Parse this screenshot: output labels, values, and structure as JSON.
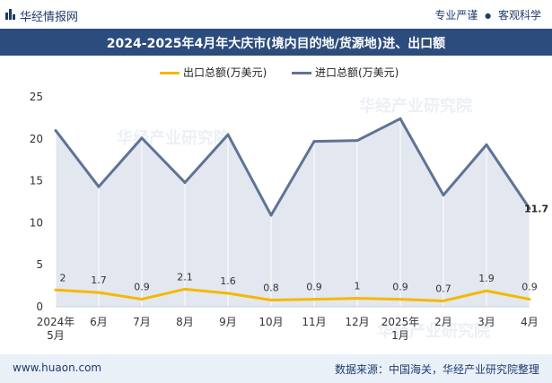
{
  "header": {
    "brand": "华经情报网",
    "tagline_left": "专业严谨",
    "tagline_sep": "●",
    "tagline_right": "客观科学"
  },
  "title": "2024-2025年4月年大庆市(境内目的地/货源地)进、出口额",
  "footer": {
    "website": "www.huaon.com",
    "source": "数据来源：中国海关，华经产业研究院整理"
  },
  "watermark": "华经产业研究院",
  "colors": {
    "title_bar": "#2c4c7e",
    "export_line": "#f5b800",
    "import_line": "#5e7396",
    "import_fill": "#e3e7ef",
    "footer_bg": "#eaf0f8"
  },
  "chart_data": {
    "type": "area",
    "title": "2024-2025年4月年大庆市(境内目的地/货源地)进、出口额",
    "categories": [
      "2024年\n5月",
      "6月",
      "7月",
      "8月",
      "9月",
      "10月",
      "11月",
      "12月",
      "2025年\n1月",
      "2月",
      "3月",
      "4月"
    ],
    "ylim": [
      0,
      25
    ],
    "yticks": [
      0,
      5,
      10,
      15,
      20,
      25
    ],
    "grid": false,
    "legend_position": "top-center",
    "series": [
      {
        "name": "出口总额(万美元)",
        "type": "line",
        "values": [
          2,
          1.7,
          0.9,
          2.1,
          1.6,
          0.8,
          0.9,
          1,
          0.9,
          0.7,
          1.9,
          0.9
        ],
        "labels": [
          "2",
          "1.7",
          "0.9",
          "2.1",
          "1.6",
          "0.8",
          "0.9",
          "1",
          "0.9",
          "0.7",
          "1.9",
          "0.9"
        ]
      },
      {
        "name": "进口总额(万美元)",
        "type": "area",
        "values": [
          21.0,
          14.3,
          20.1,
          14.8,
          20.5,
          10.9,
          19.7,
          19.8,
          22.4,
          13.3,
          19.3,
          11.7
        ],
        "labels": [
          "",
          "",
          "",
          "",
          "",
          "",
          "",
          "",
          "",
          "",
          "",
          "11.7"
        ]
      }
    ]
  }
}
